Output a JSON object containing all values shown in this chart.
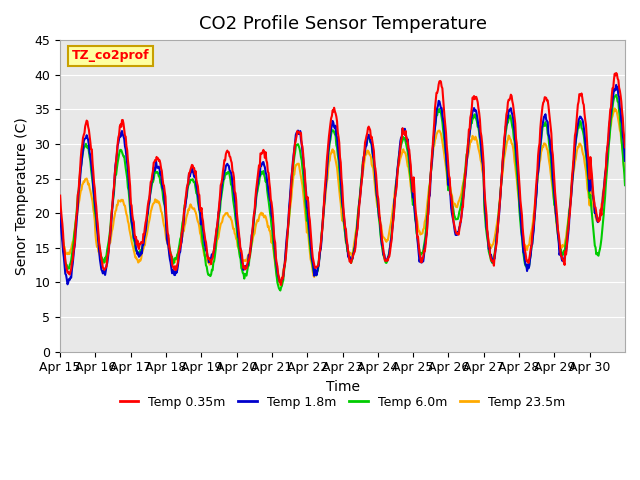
{
  "title": "CO2 Profile Sensor Temperature",
  "xlabel": "Time",
  "ylabel": "Senor Temperature (C)",
  "ylim": [
    0,
    45
  ],
  "yticks": [
    0,
    5,
    10,
    15,
    20,
    25,
    30,
    35,
    40,
    45
  ],
  "x_labels": [
    "Apr 15",
    "Apr 16",
    "Apr 17",
    "Apr 18",
    "Apr 19",
    "Apr 20",
    "Apr 21",
    "Apr 22",
    "Apr 23",
    "Apr 24",
    "Apr 25",
    "Apr 26",
    "Apr 27",
    "Apr 28",
    "Apr 29",
    "Apr 30"
  ],
  "legend_label": "TZ_co2prof",
  "legend_box_color": "#ffffa0",
  "legend_box_edge": "#c8a000",
  "series_labels": [
    "Temp 0.35m",
    "Temp 1.8m",
    "Temp 6.0m",
    "Temp 23.5m"
  ],
  "series_colors": [
    "#ff0000",
    "#0000cc",
    "#00cc00",
    "#ffaa00"
  ],
  "line_width": 1.5,
  "plot_bg_color": "#e8e8e8",
  "title_fontsize": 13,
  "axis_label_fontsize": 10,
  "tick_fontsize": 9
}
